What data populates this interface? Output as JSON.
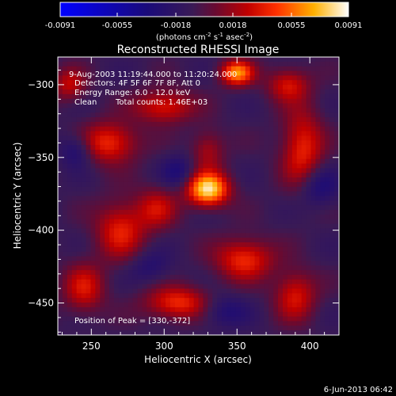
{
  "chart_data": {
    "type": "heatmap",
    "title": "Reconstructed RHESSI Image",
    "xlabel": "Heliocentric X (arcsec)",
    "ylabel": "Heliocentric Y (arcsec)",
    "xlim": [
      227,
      420
    ],
    "ylim": [
      -472,
      -281
    ],
    "x_ticks": [
      250,
      300,
      350,
      400
    ],
    "y_ticks": [
      -300,
      -350,
      -400,
      -450
    ],
    "colorbar": {
      "ticks": [
        "-0.0091",
        "-0.0055",
        "-0.0018",
        "0.0018",
        "0.0055",
        "0.0091"
      ],
      "unit_label": "(photons cm",
      "unit_exp1": "-2",
      "unit_mid1": " s",
      "unit_exp2": "-1",
      "unit_mid2": " asec",
      "unit_exp3": "-2",
      "unit_end": ")",
      "min": -0.0091,
      "max": 0.0091
    },
    "annotations": {
      "time_range": "9-Aug-2003 11:19:44.000 to 11:20:24.000",
      "detectors": "Detectors: 4F 5F 6F 7F 8F, Att 0",
      "energy": "Energy Range: 6.0 - 12.0 keV",
      "method": "Clean",
      "counts": "Total counts: 1.46E+03",
      "peak": "Position of Peak = [330,-372]"
    },
    "peak": {
      "x": 330,
      "y": -372,
      "value": 0.0091
    },
    "blobs": [
      {
        "x": 330,
        "y": -372,
        "value": 0.0091,
        "sx": 10,
        "sy": 8
      },
      {
        "x": 350,
        "y": -292,
        "value": 0.007,
        "sx": 8,
        "sy": 6
      },
      {
        "x": 262,
        "y": -340,
        "value": 0.005,
        "sx": 14,
        "sy": 10
      },
      {
        "x": 300,
        "y": -315,
        "value": 0.0045,
        "sx": 14,
        "sy": 8
      },
      {
        "x": 395,
        "y": -345,
        "value": 0.0048,
        "sx": 10,
        "sy": 20
      },
      {
        "x": 385,
        "y": -300,
        "value": 0.004,
        "sx": 10,
        "sy": 8
      },
      {
        "x": 270,
        "y": -400,
        "value": 0.0045,
        "sx": 12,
        "sy": 14
      },
      {
        "x": 355,
        "y": -420,
        "value": 0.005,
        "sx": 14,
        "sy": 10
      },
      {
        "x": 310,
        "y": -450,
        "value": 0.005,
        "sx": 16,
        "sy": 8
      },
      {
        "x": 245,
        "y": -440,
        "value": 0.004,
        "sx": 10,
        "sy": 12
      },
      {
        "x": 390,
        "y": -445,
        "value": 0.0042,
        "sx": 10,
        "sy": 12
      },
      {
        "x": 235,
        "y": -300,
        "value": 0.0035,
        "sx": 8,
        "sy": 8
      },
      {
        "x": 295,
        "y": -385,
        "value": 0.0035,
        "sx": 10,
        "sy": 10
      },
      {
        "x": 330,
        "y": -345,
        "value": 0.003,
        "sx": 8,
        "sy": 10
      },
      {
        "x": 240,
        "y": -345,
        "value": -0.003,
        "sx": 8,
        "sy": 8
      },
      {
        "x": 310,
        "y": -360,
        "value": -0.0025,
        "sx": 8,
        "sy": 8
      },
      {
        "x": 405,
        "y": -370,
        "value": -0.003,
        "sx": 10,
        "sy": 10
      },
      {
        "x": 340,
        "y": -455,
        "value": -0.0025,
        "sx": 12,
        "sy": 8
      },
      {
        "x": 290,
        "y": -425,
        "value": -0.002,
        "sx": 10,
        "sy": 8
      }
    ]
  },
  "footer": {
    "date": "6-Jun-2013 06:42"
  }
}
